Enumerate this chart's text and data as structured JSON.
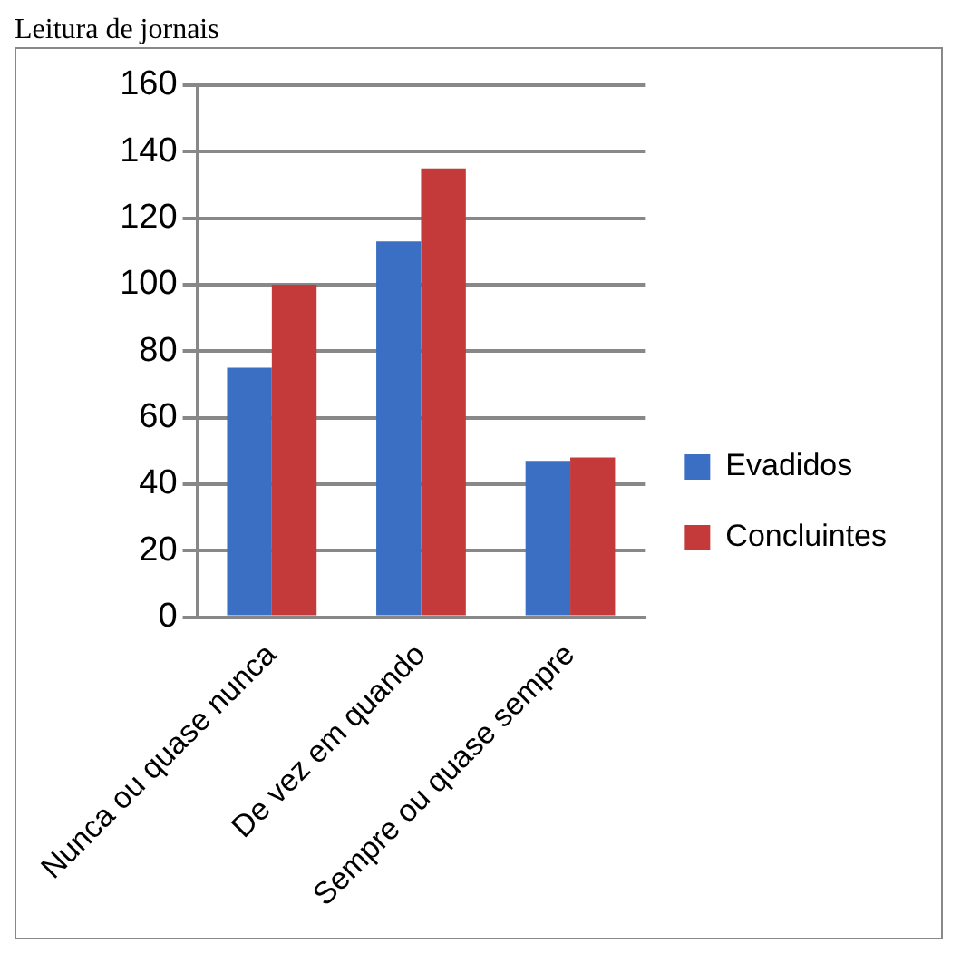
{
  "chart_data": {
    "type": "bar",
    "title": "Leitura de jornais",
    "categories": [
      "Nunca ou quase nunca",
      "De vez em quando",
      "Sempre ou quase sempre"
    ],
    "series": [
      {
        "name": "Evadidos",
        "color": "#3a6fc4",
        "values": [
          75,
          113,
          47
        ]
      },
      {
        "name": "Concluintes",
        "color": "#c43a3a",
        "values": [
          100,
          135,
          48
        ]
      }
    ],
    "ylim": [
      0,
      160
    ],
    "yticks": [
      0,
      20,
      40,
      60,
      80,
      100,
      120,
      140,
      160
    ],
    "grid": "y",
    "legend": "right"
  }
}
